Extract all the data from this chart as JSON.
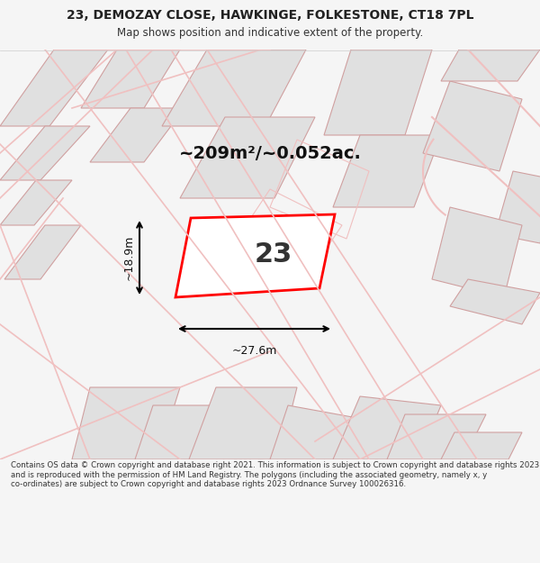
{
  "title_line1": "23, DEMOZAY CLOSE, HAWKINGE, FOLKESTONE, CT18 7PL",
  "title_line2": "Map shows position and indicative extent of the property.",
  "area_text": "~209m²/~0.052ac.",
  "plot_number": "23",
  "dim_width": "~27.6m",
  "dim_height": "~18.9m",
  "footer_text": "Contains OS data © Crown copyright and database right 2021. This information is subject to Crown copyright and database rights 2023 and is reproduced with the permission of HM Land Registry. The polygons (including the associated geometry, namely x, y co-ordinates) are subject to Crown copyright and database rights 2023 Ordnance Survey 100026316.",
  "bg_color": "#f5f5f5",
  "map_bg": "#ffffff",
  "plot_color": "#ff0000",
  "road_color": "#f0c0c0",
  "building_color": "#e0e0e0",
  "building_stroke": "#d0a0a0"
}
